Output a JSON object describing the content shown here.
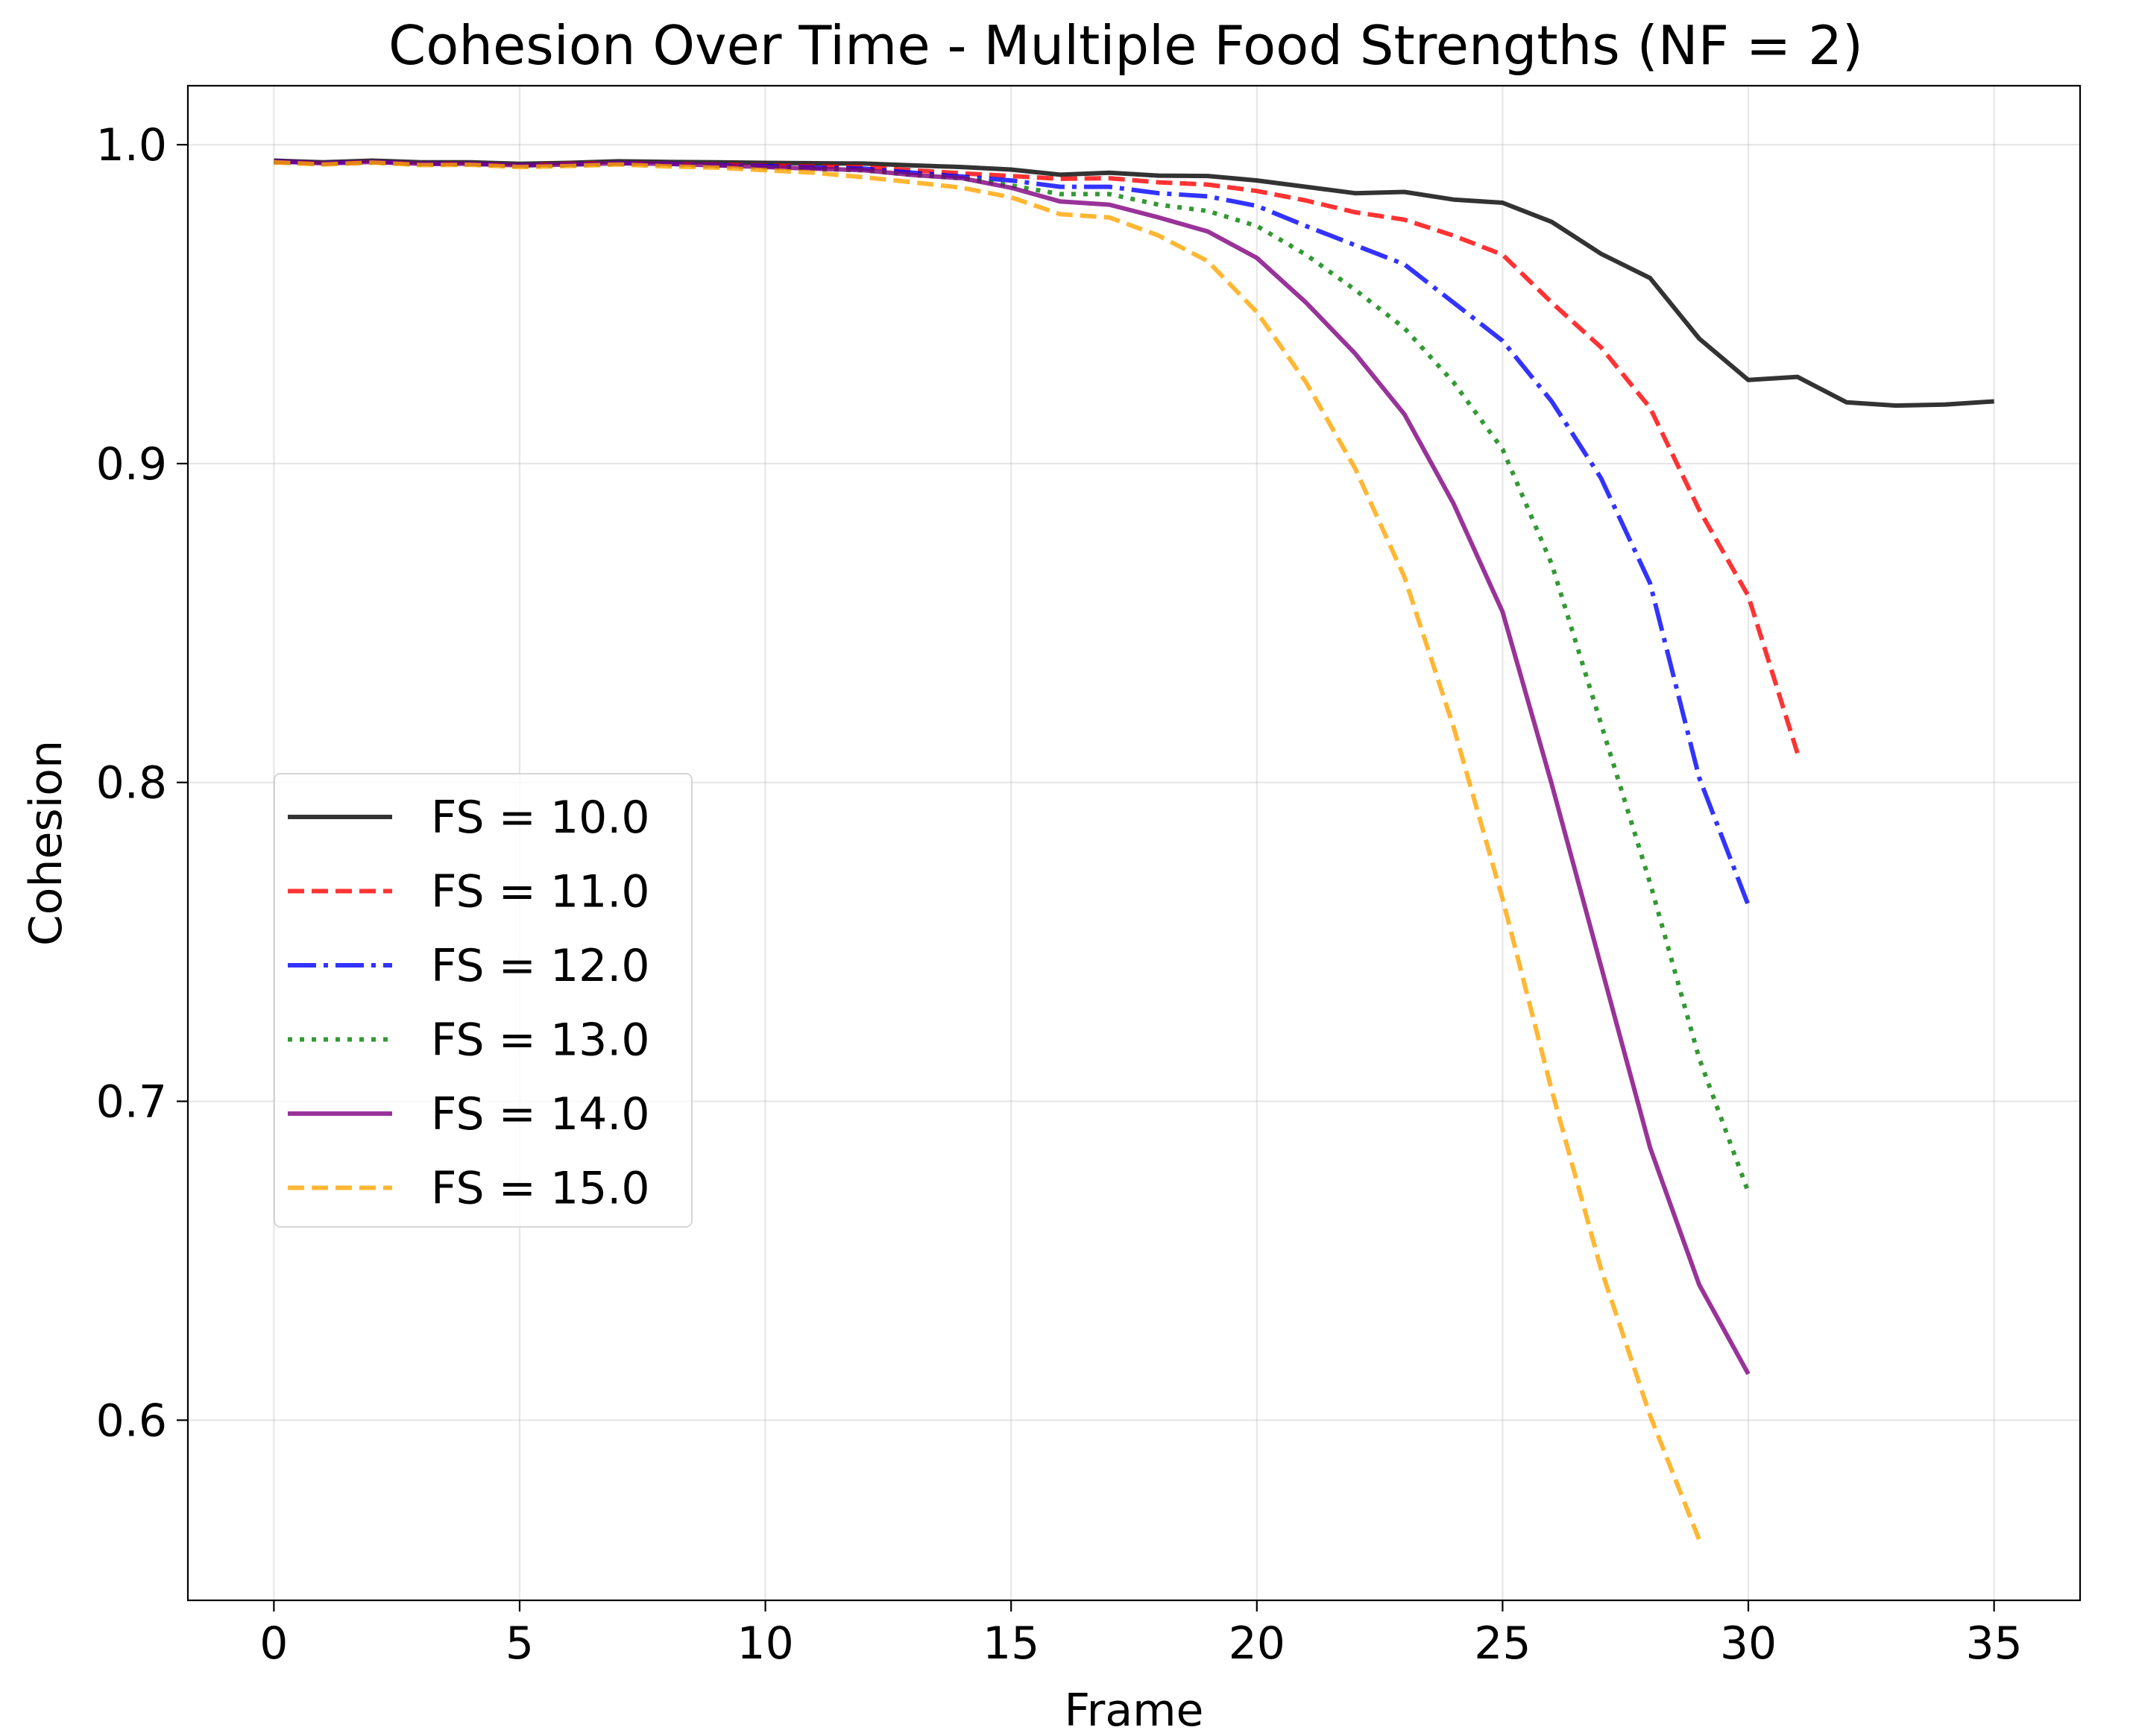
{
  "chart_data": {
    "type": "line",
    "title": "Cohesion Over Time - Multiple Food Strengths (NF = 2)",
    "xlabel": "Frame",
    "ylabel": "Cohesion",
    "xlim": [
      -1.75,
      36.75
    ],
    "ylim": [
      0.5435,
      1.0185
    ],
    "xticks": [
      0,
      5,
      10,
      15,
      20,
      25,
      30,
      35
    ],
    "xtick_labels": [
      "0",
      "5",
      "10",
      "15",
      "20",
      "25",
      "30",
      "35"
    ],
    "yticks": [
      0.6,
      0.7,
      0.8,
      0.9,
      1.0
    ],
    "ytick_labels": [
      "0.6",
      "0.7",
      "0.8",
      "0.9",
      "1.0"
    ],
    "grid": true,
    "legend_position": "center-left",
    "series": [
      {
        "name": "FS = 10.0",
        "color": "#000000",
        "dash": "solid",
        "x": [
          0,
          1,
          2,
          3,
          4,
          5,
          6,
          7,
          8,
          9,
          10,
          11,
          12,
          13,
          14,
          15,
          16,
          17,
          18,
          19,
          20,
          21,
          22,
          23,
          24,
          25,
          26,
          27,
          28,
          29,
          30,
          31,
          32,
          33,
          34,
          35
        ],
        "values": [
          0.995,
          0.9945,
          0.995,
          0.9945,
          0.9945,
          0.994,
          0.9943,
          0.9948,
          0.9946,
          0.9945,
          0.9943,
          0.9942,
          0.9941,
          0.9935,
          0.993,
          0.9922,
          0.9906,
          0.9912,
          0.9903,
          0.9902,
          0.9888,
          0.9868,
          0.9848,
          0.9852,
          0.9828,
          0.9818,
          0.9758,
          0.9658,
          0.9582,
          0.9392,
          0.9262,
          0.9272,
          0.9192,
          0.9182,
          0.9185,
          0.9195
        ]
      },
      {
        "name": "FS = 11.0",
        "color": "#ff0000",
        "dash": "dashed",
        "x": [
          0,
          1,
          2,
          3,
          4,
          5,
          6,
          7,
          8,
          9,
          10,
          11,
          12,
          13,
          14,
          15,
          16,
          17,
          18,
          19,
          20,
          21,
          22,
          23,
          24,
          25,
          26,
          27,
          28,
          29,
          30,
          31
        ],
        "values": [
          0.9945,
          0.994,
          0.9945,
          0.994,
          0.994,
          0.9935,
          0.994,
          0.9942,
          0.994,
          0.9938,
          0.9935,
          0.9932,
          0.993,
          0.992,
          0.991,
          0.9902,
          0.9893,
          0.9895,
          0.9882,
          0.9875,
          0.9855,
          0.9825,
          0.9788,
          0.9765,
          0.9715,
          0.9655,
          0.9505,
          0.9365,
          0.9175,
          0.8855,
          0.8585,
          0.8092
        ]
      },
      {
        "name": "FS = 12.0",
        "color": "#0000ff",
        "dash": "dashdot",
        "x": [
          0,
          1,
          2,
          3,
          4,
          5,
          6,
          7,
          8,
          9,
          10,
          11,
          12,
          13,
          14,
          15,
          16,
          17,
          18,
          19,
          20,
          21,
          22,
          23,
          24,
          25,
          26,
          27,
          28,
          29,
          30
        ],
        "values": [
          0.9948,
          0.9942,
          0.9946,
          0.994,
          0.994,
          0.9935,
          0.9938,
          0.9942,
          0.994,
          0.9936,
          0.9933,
          0.9928,
          0.9925,
          0.9912,
          0.99,
          0.9888,
          0.9868,
          0.9868,
          0.9848,
          0.9838,
          0.9808,
          0.9745,
          0.9685,
          0.9625,
          0.9505,
          0.9385,
          0.9195,
          0.8955,
          0.8625,
          0.8015,
          0.7615
        ]
      },
      {
        "name": "FS = 13.0",
        "color": "#008000",
        "dash": "dotted",
        "x": [
          0,
          1,
          2,
          3,
          4,
          5,
          6,
          7,
          8,
          9,
          10,
          11,
          12,
          13,
          14,
          15,
          16,
          17,
          18,
          19,
          20,
          21,
          22,
          23,
          24,
          25,
          26,
          27,
          28,
          29,
          30
        ],
        "values": [
          0.9945,
          0.994,
          0.9944,
          0.9938,
          0.9938,
          0.9932,
          0.9935,
          0.994,
          0.9937,
          0.9933,
          0.9928,
          0.9924,
          0.992,
          0.9905,
          0.9895,
          0.9872,
          0.9845,
          0.9845,
          0.9812,
          0.9792,
          0.9745,
          0.9655,
          0.9545,
          0.9425,
          0.9255,
          0.9045,
          0.8685,
          0.8185,
          0.7685,
          0.7135,
          0.6715
        ]
      },
      {
        "name": "FS = 14.0",
        "color": "#800080",
        "dash": "solid",
        "x": [
          0,
          1,
          2,
          3,
          4,
          5,
          6,
          7,
          8,
          9,
          10,
          11,
          12,
          13,
          14,
          15,
          16,
          17,
          18,
          19,
          20,
          21,
          22,
          23,
          24,
          25,
          26,
          27,
          28,
          29,
          30
        ],
        "values": [
          0.9948,
          0.9942,
          0.9946,
          0.994,
          0.994,
          0.9935,
          0.9938,
          0.9942,
          0.994,
          0.9935,
          0.993,
          0.9925,
          0.992,
          0.9905,
          0.9895,
          0.9865,
          0.9822,
          0.9812,
          0.9772,
          0.9728,
          0.9645,
          0.9505,
          0.9345,
          0.9155,
          0.8875,
          0.8535,
          0.7995,
          0.7425,
          0.6855,
          0.6425,
          0.6145
        ]
      },
      {
        "name": "FS = 15.0",
        "color": "#ffa500",
        "dash": "dashed",
        "x": [
          0,
          1,
          2,
          3,
          4,
          5,
          6,
          7,
          8,
          9,
          10,
          11,
          12,
          13,
          14,
          15,
          16,
          17,
          18,
          19,
          20,
          21,
          22,
          23,
          24,
          25,
          26,
          27,
          28,
          29
        ],
        "values": [
          0.9945,
          0.9938,
          0.9944,
          0.9936,
          0.9937,
          0.993,
          0.9933,
          0.9938,
          0.9932,
          0.9928,
          0.992,
          0.9912,
          0.9898,
          0.9882,
          0.9865,
          0.9835,
          0.9782,
          0.9772,
          0.9715,
          0.9635,
          0.9475,
          0.9255,
          0.8985,
          0.8645,
          0.8175,
          0.7635,
          0.7035,
          0.6475,
          0.6015,
          0.5625
        ]
      }
    ]
  }
}
